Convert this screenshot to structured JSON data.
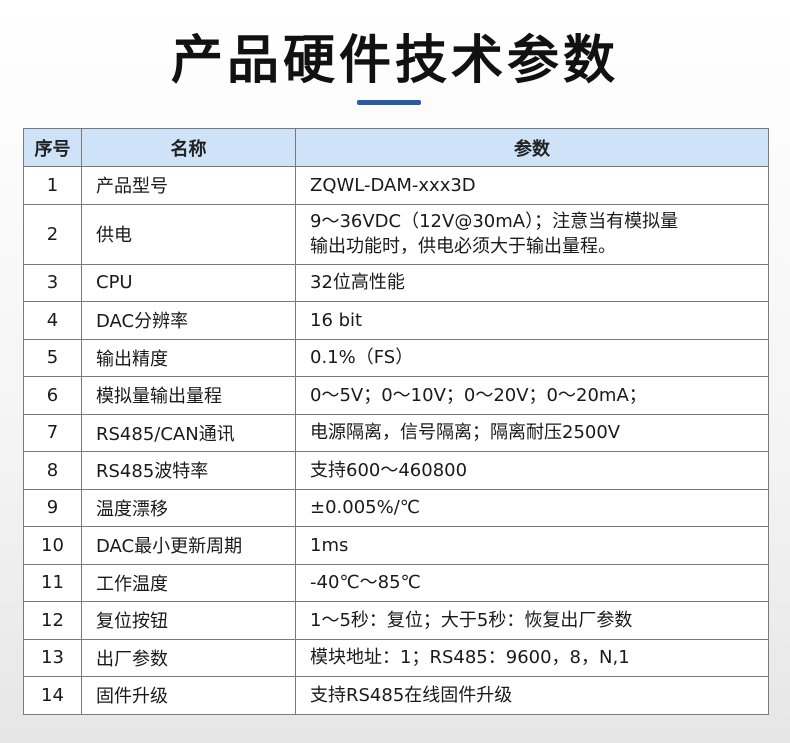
{
  "title": "产品硬件技术参数",
  "accent_color": "#2b5aa8",
  "header_bg": "#cfe3f8",
  "table": {
    "headers": [
      "序号",
      "名称",
      "参数"
    ],
    "rows": [
      {
        "no": "1",
        "name": "产品型号",
        "value": "ZQWL-DAM-xxx3D"
      },
      {
        "no": "2",
        "name": "供电",
        "value": "9～36VDC（12V@30mA）；注意当有模拟量输出功能时，供电必须大于输出量程。"
      },
      {
        "no": "3",
        "name": "CPU",
        "value": "32位高性能"
      },
      {
        "no": "4",
        "name": "DAC分辨率",
        "value": "16 bit"
      },
      {
        "no": "5",
        "name": "输出精度",
        "value": "0.1%（FS）"
      },
      {
        "no": "6",
        "name": "模拟量输出量程",
        "value": "0～5V；0～10V；0～20V；0～20mA；"
      },
      {
        "no": "7",
        "name": "RS485/CAN通讯",
        "value": "电源隔离，信号隔离；隔离耐压2500V"
      },
      {
        "no": "8",
        "name": "RS485波特率",
        "value": "支持600～460800"
      },
      {
        "no": "9",
        "name": "温度漂移",
        "value": "±0.005%/℃"
      },
      {
        "no": "10",
        "name": "DAC最小更新周期",
        "value": "1ms"
      },
      {
        "no": "11",
        "name": "工作温度",
        "value": "-40℃～85℃"
      },
      {
        "no": "12",
        "name": "复位按钮",
        "value": "1～5秒：复位；大于5秒：恢复出厂参数"
      },
      {
        "no": "13",
        "name": "出厂参数",
        "value": "模块地址：1；RS485：9600，8，N,1"
      },
      {
        "no": "14",
        "name": "固件升级",
        "value": "支持RS485在线固件升级"
      }
    ]
  }
}
